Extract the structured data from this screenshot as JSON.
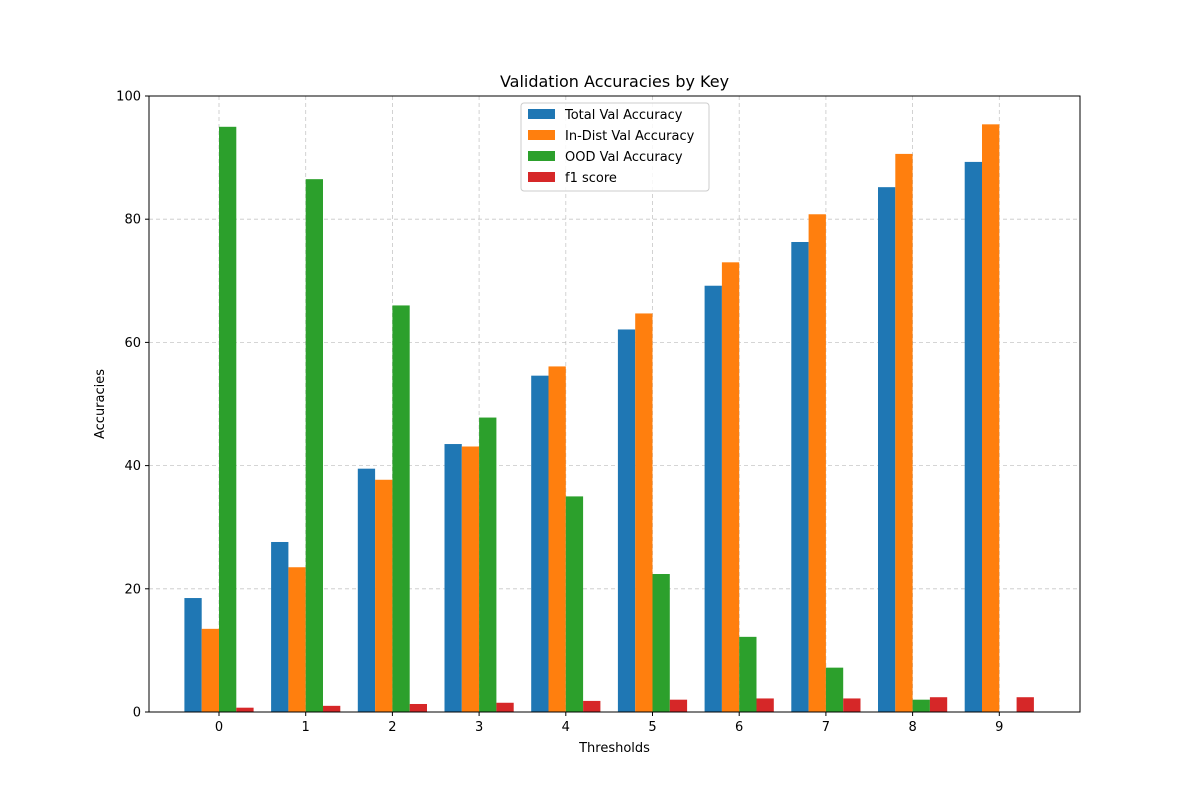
{
  "chart_data": {
    "type": "bar",
    "title": "Validation Accuracies by Key",
    "xlabel": "Thresholds",
    "ylabel": "Accuracies",
    "categories": [
      "0",
      "1",
      "2",
      "3",
      "4",
      "5",
      "6",
      "7",
      "8",
      "9"
    ],
    "ylim": [
      0,
      100
    ],
    "yticks": [
      "0",
      "20",
      "40",
      "60",
      "80",
      "100"
    ],
    "grid": true,
    "legend_position": "top-center",
    "series": [
      {
        "name": "Total Val Accuracy",
        "color": "#1f77b4",
        "values": [
          18.5,
          27.6,
          39.5,
          43.5,
          54.6,
          62.1,
          69.2,
          76.3,
          85.2,
          89.3
        ]
      },
      {
        "name": "In-Dist Val Accuracy",
        "color": "#ff7f0e",
        "values": [
          13.5,
          23.5,
          37.7,
          43.1,
          56.1,
          64.7,
          73.0,
          80.8,
          90.6,
          95.4
        ]
      },
      {
        "name": "OOD Val Accuracy",
        "color": "#2ca02c",
        "values": [
          95.0,
          86.5,
          66.0,
          47.8,
          35.0,
          22.4,
          12.2,
          7.2,
          2.0,
          0
        ]
      },
      {
        "name": "f1 score",
        "color": "#d62728",
        "values": [
          0.7,
          1.0,
          1.3,
          1.5,
          1.8,
          2.0,
          2.2,
          2.2,
          2.4,
          2.4
        ]
      }
    ]
  }
}
